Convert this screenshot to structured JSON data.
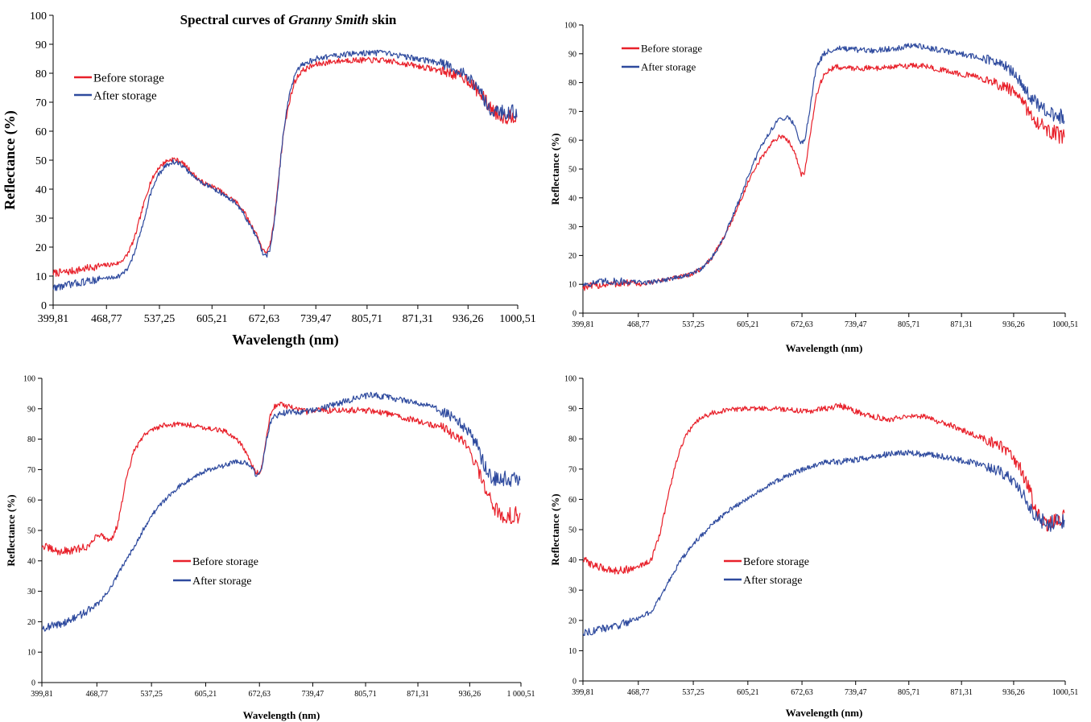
{
  "colors": {
    "before": "#e8202a",
    "after": "#2e4a9e",
    "axis": "#000000"
  },
  "chart_data": [
    {
      "type": "line",
      "title_prefix": "Spectral curves of ",
      "title_italic": "Granny Smith",
      "title_suffix": " skin",
      "xlabel": "Wavelength (nm)",
      "ylabel": "Reflectance (%)",
      "xlim": [
        399.81,
        1000.51
      ],
      "ylim": [
        0,
        100
      ],
      "yticks": [
        0,
        10,
        20,
        30,
        40,
        50,
        60,
        70,
        80,
        90,
        100
      ],
      "xtick_values": [
        399.81,
        468.77,
        537.25,
        605.21,
        672.63,
        739.47,
        805.71,
        871.31,
        936.26,
        1000.51
      ],
      "xtick_labels": [
        "399,81",
        "468,77",
        "537,25",
        "605,21",
        "672,63",
        "739,47",
        "805,71",
        "871,31",
        "936,26",
        "1000,51"
      ],
      "legend_position": "top-left",
      "series": [
        {
          "name": "Before storage",
          "x": [
            400,
            420,
            440,
            460,
            475,
            485,
            495,
            505,
            515,
            525,
            535,
            545,
            555,
            565,
            575,
            585,
            595,
            605,
            615,
            625,
            635,
            645,
            655,
            662,
            668,
            672,
            676,
            680,
            686,
            692,
            698,
            705,
            712,
            720,
            730,
            740,
            760,
            780,
            800,
            820,
            840,
            860,
            880,
            900,
            920,
            935,
            945,
            955,
            965,
            975,
            985,
            1000
          ],
          "y": [
            11,
            11.5,
            12.5,
            13.5,
            14,
            14.5,
            17,
            23,
            33,
            42,
            47,
            49.5,
            50.5,
            49.5,
            47,
            44,
            42,
            41,
            39.5,
            37.5,
            36,
            33,
            28,
            25,
            21,
            18.5,
            18.5,
            20,
            30,
            46,
            60,
            70,
            77,
            80.5,
            82,
            83,
            84,
            84.5,
            84.5,
            84.5,
            84,
            83,
            82,
            81,
            79.5,
            78,
            75,
            72,
            68,
            66,
            65,
            66
          ]
        },
        {
          "name": "After storage",
          "x": [
            400,
            420,
            440,
            460,
            475,
            485,
            495,
            505,
            515,
            525,
            535,
            545,
            555,
            565,
            575,
            585,
            595,
            605,
            615,
            625,
            635,
            645,
            655,
            662,
            668,
            672,
            676,
            680,
            686,
            692,
            698,
            705,
            712,
            720,
            730,
            740,
            760,
            780,
            800,
            820,
            840,
            860,
            880,
            900,
            920,
            935,
            945,
            955,
            965,
            975,
            985,
            1000
          ],
          "y": [
            6,
            7,
            8,
            9,
            9.5,
            10,
            12,
            18,
            27,
            38,
            44.5,
            48,
            49.5,
            48.5,
            46,
            43.5,
            42,
            40.5,
            39,
            37,
            35.5,
            32,
            27,
            24,
            20,
            17,
            17,
            19,
            29,
            45,
            61,
            72,
            79,
            82.5,
            84,
            85,
            86,
            86.5,
            87,
            87,
            86.5,
            85.5,
            84.5,
            83.5,
            81.5,
            79,
            76,
            72,
            68,
            67,
            66,
            67
          ]
        }
      ]
    },
    {
      "type": "line",
      "xlabel": "Wavelength (nm)",
      "ylabel": "Reflectance (%)",
      "xlim": [
        399.81,
        1000.51
      ],
      "ylim": [
        0,
        100
      ],
      "yticks": [
        0,
        10,
        20,
        30,
        40,
        50,
        60,
        70,
        80,
        90,
        100
      ],
      "xtick_values": [
        399.81,
        468.77,
        537.25,
        605.21,
        672.63,
        739.47,
        805.71,
        871.31,
        936.26,
        1000.51
      ],
      "xtick_labels": [
        "399,81",
        "468,77",
        "537,25",
        "605,21",
        "672,63",
        "739,47",
        "805,71",
        "871,31",
        "936,26",
        "1000,51"
      ],
      "legend_position": "top-left",
      "series": [
        {
          "name": "Before storage",
          "x": [
            400,
            430,
            460,
            475,
            490,
            510,
            530,
            545,
            560,
            575,
            590,
            605,
            620,
            635,
            645,
            655,
            662,
            668,
            672,
            676,
            682,
            690,
            700,
            715,
            730,
            760,
            790,
            810,
            830,
            860,
            890,
            910,
            930,
            945,
            960,
            975,
            990,
            1000
          ],
          "y": [
            9,
            10,
            10.5,
            10,
            11,
            12,
            13,
            15,
            19,
            26,
            35,
            45,
            53,
            59,
            61.5,
            60,
            57,
            52,
            48,
            49,
            60,
            75,
            83,
            85.5,
            85,
            85,
            85.5,
            86,
            85.5,
            83.5,
            82,
            80,
            78,
            74,
            68,
            64,
            62,
            61
          ]
        },
        {
          "name": "After storage",
          "x": [
            400,
            430,
            460,
            475,
            490,
            510,
            530,
            545,
            560,
            575,
            590,
            605,
            620,
            635,
            645,
            655,
            662,
            668,
            672,
            676,
            682,
            690,
            700,
            715,
            730,
            760,
            790,
            810,
            830,
            860,
            890,
            910,
            930,
            945,
            960,
            975,
            990,
            1000
          ],
          "y": [
            10,
            11,
            11,
            10.5,
            11,
            12,
            13,
            15,
            19,
            26,
            36,
            47,
            57,
            64,
            67.5,
            68,
            66,
            61,
            59,
            60,
            70,
            85,
            90,
            92,
            91.5,
            91,
            92,
            93,
            92,
            90.5,
            89,
            87.5,
            85,
            80,
            74,
            70,
            68,
            68
          ]
        }
      ]
    },
    {
      "type": "line",
      "xlabel": "Wavelength (nm)",
      "ylabel": "Reflectance (%)",
      "xlim": [
        399.81,
        1000.51
      ],
      "ylim": [
        0,
        100
      ],
      "yticks": [
        0,
        10,
        20,
        30,
        40,
        50,
        60,
        70,
        80,
        90,
        100
      ],
      "xtick_values": [
        399.81,
        468.77,
        537.25,
        605.21,
        672.63,
        739.47,
        805.71,
        871.31,
        936.26,
        1000.51
      ],
      "xtick_labels": [
        "399,81",
        "468,77",
        "537,25",
        "605,21",
        "672,63",
        "739,47",
        "805,71",
        "871,31",
        "936,26",
        "1 000,51"
      ],
      "legend_position": "center",
      "series": [
        {
          "name": "Before storage",
          "x": [
            400,
            420,
            440,
            460,
            468,
            475,
            482,
            488,
            495,
            505,
            515,
            530,
            550,
            570,
            590,
            610,
            630,
            645,
            655,
            662,
            668,
            672,
            676,
            680,
            686,
            692,
            700,
            715,
            730,
            750,
            780,
            810,
            840,
            870,
            900,
            920,
            935,
            945,
            955,
            965,
            975,
            1000
          ],
          "y": [
            45,
            43,
            43.5,
            45,
            48.5,
            48.5,
            47,
            47.5,
            52,
            66,
            76,
            82,
            84.5,
            85,
            84.5,
            83.5,
            82.5,
            80,
            76,
            72,
            69,
            69,
            71,
            78,
            88,
            91,
            91.5,
            90,
            89,
            89.5,
            89.5,
            89.5,
            88,
            86,
            84,
            81,
            77,
            71,
            64,
            58,
            55,
            55
          ]
        },
        {
          "name": "After storage",
          "x": [
            400,
            420,
            440,
            460,
            475,
            490,
            505,
            520,
            535,
            550,
            565,
            580,
            595,
            610,
            625,
            640,
            655,
            662,
            668,
            672,
            676,
            680,
            686,
            692,
            700,
            715,
            730,
            750,
            780,
            810,
            830,
            850,
            870,
            890,
            910,
            930,
            945,
            955,
            965,
            975,
            1000
          ],
          "y": [
            18,
            19,
            21,
            24,
            27,
            33,
            40,
            47,
            54,
            59,
            63,
            66,
            68.5,
            70,
            71,
            72.5,
            72.5,
            71,
            68.5,
            68,
            71,
            78,
            85,
            87.5,
            88.5,
            89,
            89,
            90,
            92.5,
            94.5,
            94,
            93,
            92,
            90.5,
            88,
            84,
            78,
            71,
            67,
            67,
            67
          ]
        }
      ]
    },
    {
      "type": "line",
      "xlabel": "Wavelength (nm)",
      "ylabel": "Reflectance (%)",
      "xlim": [
        399.81,
        1000.51
      ],
      "ylim": [
        0,
        100
      ],
      "yticks": [
        0,
        10,
        20,
        30,
        40,
        50,
        60,
        70,
        80,
        90,
        100
      ],
      "xtick_values": [
        399.81,
        468.77,
        537.25,
        605.21,
        672.63,
        739.47,
        805.71,
        871.31,
        936.26,
        1000.51
      ],
      "xtick_labels": [
        "399,81",
        "468,77",
        "537,25",
        "605,21",
        "672,63",
        "739,47",
        "805,71",
        "871,31",
        "936,26",
        "1000,51"
      ],
      "legend_position": "center",
      "series": [
        {
          "name": "Before storage",
          "x": [
            400,
            420,
            440,
            460,
            475,
            485,
            495,
            505,
            512,
            520,
            530,
            545,
            560,
            580,
            600,
            620,
            640,
            660,
            680,
            700,
            720,
            740,
            760,
            780,
            800,
            820,
            840,
            860,
            880,
            900,
            920,
            935,
            945,
            955,
            962,
            970,
            980,
            1000
          ],
          "y": [
            40,
            37.5,
            36.5,
            37,
            38.5,
            40,
            48,
            60,
            68,
            76,
            82,
            86.5,
            88.5,
            89.5,
            90,
            90,
            90,
            89.5,
            89,
            90,
            91,
            89,
            87.5,
            86.5,
            87,
            87.5,
            86,
            84.5,
            82,
            80,
            77.5,
            74,
            70,
            64,
            58,
            53,
            52,
            54
          ]
        },
        {
          "name": "After storage",
          "x": [
            400,
            420,
            440,
            460,
            475,
            485,
            495,
            505,
            515,
            525,
            540,
            560,
            580,
            600,
            620,
            640,
            660,
            680,
            700,
            720,
            740,
            760,
            780,
            800,
            820,
            840,
            860,
            880,
            900,
            920,
            935,
            945,
            955,
            962,
            970,
            980,
            1000
          ],
          "y": [
            16,
            17,
            18,
            20,
            21.5,
            23,
            27,
            32,
            37,
            41,
            46,
            51.5,
            56,
            59.5,
            63,
            66,
            68.5,
            70.5,
            72,
            72.5,
            73,
            74,
            75,
            75.5,
            75,
            74.5,
            73.5,
            72.5,
            71,
            69,
            66.5,
            63,
            58,
            55,
            53,
            52,
            53
          ]
        }
      ]
    }
  ]
}
